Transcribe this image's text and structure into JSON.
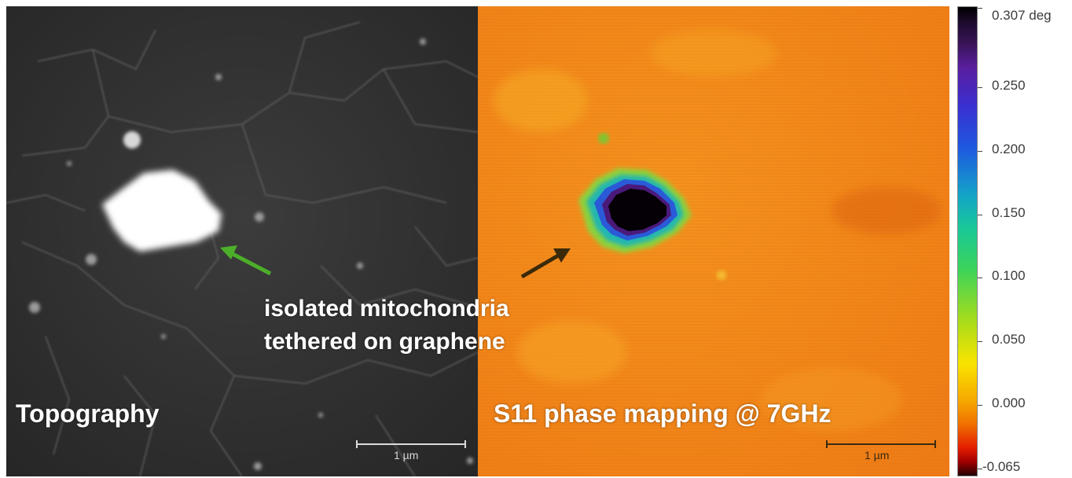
{
  "panels": {
    "topography": {
      "title": "Topography",
      "scale_bar": "1 µm"
    },
    "phase": {
      "title": "S11 phase mapping @ 7GHz",
      "scale_bar": "1 µm"
    }
  },
  "caption": {
    "line1": "isolated mitochondria",
    "line2": "tethered on graphene"
  },
  "colorbar": {
    "top_label": "0.307 deg",
    "ticks": [
      "0.250",
      "0.200",
      "0.150",
      "0.100",
      "0.050",
      "0.000"
    ],
    "bottom_label": "-0.065"
  },
  "colors": {
    "topo_arrow": "#4caf2a",
    "phase_arrow": "#3a2a08",
    "phase_background": "#f08a1a"
  }
}
